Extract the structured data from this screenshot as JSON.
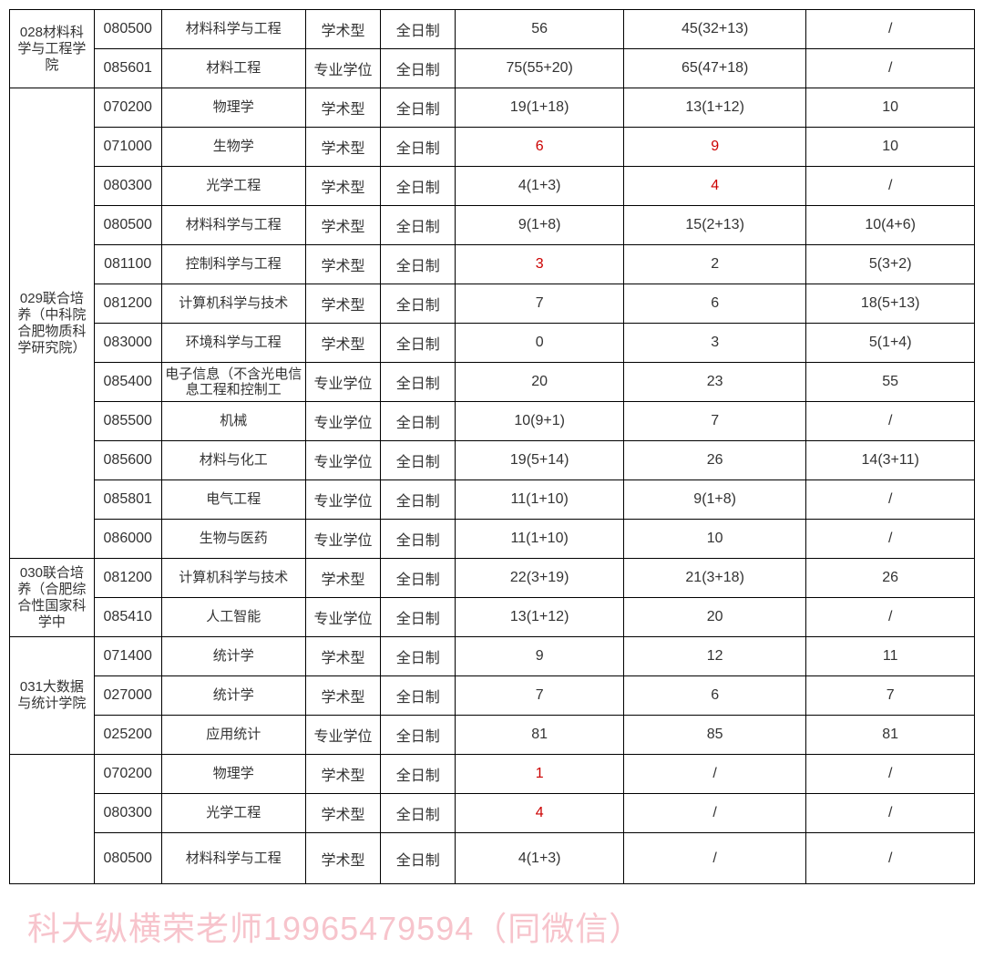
{
  "columns": {
    "widths": [
      88,
      70,
      150,
      78,
      78,
      175,
      190,
      175
    ]
  },
  "groups": [
    {
      "dept": "028材料科学与工程学院",
      "rows": [
        {
          "code": "080500",
          "major": "材料科学与工程",
          "type": "学术型",
          "mode": "全日制",
          "c5": "56",
          "c6": "45(32+13)",
          "c7": "/"
        },
        {
          "code": "085601",
          "major": "材料工程",
          "type": "专业学位",
          "mode": "全日制",
          "c5": "75(55+20)",
          "c6": "65(47+18)",
          "c7": "/"
        }
      ]
    },
    {
      "dept": "029联合培养（中科院合肥物质科学研究院）",
      "rows": [
        {
          "code": "070200",
          "major": "物理学",
          "type": "学术型",
          "mode": "全日制",
          "c5": "19(1+18)",
          "c6": "13(1+12)",
          "c7": "10"
        },
        {
          "code": "071000",
          "major": "生物学",
          "type": "学术型",
          "mode": "全日制",
          "c5": "6",
          "c5red": true,
          "c6": "9",
          "c6red": true,
          "c7": "10"
        },
        {
          "code": "080300",
          "major": "光学工程",
          "type": "学术型",
          "mode": "全日制",
          "c5": "4(1+3)",
          "c6": "4",
          "c6red": true,
          "c7": "/"
        },
        {
          "code": "080500",
          "major": "材料科学与工程",
          "type": "学术型",
          "mode": "全日制",
          "c5": "9(1+8)",
          "c6": "15(2+13)",
          "c7": "10(4+6)"
        },
        {
          "code": "081100",
          "major": "控制科学与工程",
          "type": "学术型",
          "mode": "全日制",
          "c5": "3",
          "c5red": true,
          "c6": "2",
          "c7": "5(3+2)"
        },
        {
          "code": "081200",
          "major": "计算机科学与技术",
          "type": "学术型",
          "mode": "全日制",
          "c5": "7",
          "c6": "6",
          "c7": "18(5+13)"
        },
        {
          "code": "083000",
          "major": "环境科学与工程",
          "type": "学术型",
          "mode": "全日制",
          "c5": "0",
          "c6": "3",
          "c7": "5(1+4)"
        },
        {
          "code": "085400",
          "major": "电子信息（不含光电信息工程和控制工",
          "type": "专业学位",
          "mode": "全日制",
          "c5": "20",
          "c6": "23",
          "c7": "55"
        },
        {
          "code": "085500",
          "major": "机械",
          "type": "专业学位",
          "mode": "全日制",
          "c5": "10(9+1)",
          "c6": "7",
          "c7": "/"
        },
        {
          "code": "085600",
          "major": "材料与化工",
          "type": "专业学位",
          "mode": "全日制",
          "c5": "19(5+14)",
          "c6": "26",
          "c7": "14(3+11)"
        },
        {
          "code": "085801",
          "major": "电气工程",
          "type": "专业学位",
          "mode": "全日制",
          "c5": "11(1+10)",
          "c6": "9(1+8)",
          "c7": "/"
        },
        {
          "code": "086000",
          "major": "生物与医药",
          "type": "专业学位",
          "mode": "全日制",
          "c5": "11(1+10)",
          "c6": "10",
          "c7": "/"
        }
      ]
    },
    {
      "dept": "030联合培养（合肥综合性国家科学中",
      "rows": [
        {
          "code": "081200",
          "major": "计算机科学与技术",
          "type": "学术型",
          "mode": "全日制",
          "c5": "22(3+19)",
          "c6": "21(3+18)",
          "c7": "26"
        },
        {
          "code": "085410",
          "major": "人工智能",
          "type": "专业学位",
          "mode": "全日制",
          "c5": "13(1+12)",
          "c6": "20",
          "c7": "/"
        }
      ]
    },
    {
      "dept": "031大数据与统计学院",
      "rows": [
        {
          "code": "071400",
          "major": "统计学",
          "type": "学术型",
          "mode": "全日制",
          "c5": "9",
          "c6": "12",
          "c7": "11"
        },
        {
          "code": "027000",
          "major": "统计学",
          "type": "学术型",
          "mode": "全日制",
          "c5": "7",
          "c6": "6",
          "c7": "7"
        },
        {
          "code": "025200",
          "major": "应用统计",
          "type": "专业学位",
          "mode": "全日制",
          "c5": "81",
          "c6": "85",
          "c7": "81"
        }
      ]
    },
    {
      "dept": "",
      "rows": [
        {
          "code": "070200",
          "major": "物理学",
          "type": "学术型",
          "mode": "全日制",
          "c5": "1",
          "c5red": true,
          "c6": "/",
          "c7": "/"
        },
        {
          "code": "080300",
          "major": "光学工程",
          "type": "学术型",
          "mode": "全日制",
          "c5": "4",
          "c5red": true,
          "c6": "/",
          "c7": "/"
        },
        {
          "code": "080500",
          "major": "材料科学与工程",
          "type": "学术型",
          "mode": "全日制",
          "c5": "4(1+3)",
          "c6": "/",
          "c7": "/",
          "tall": true
        }
      ]
    }
  ],
  "footer": "科大纵横荣老师19965479594（同微信）"
}
